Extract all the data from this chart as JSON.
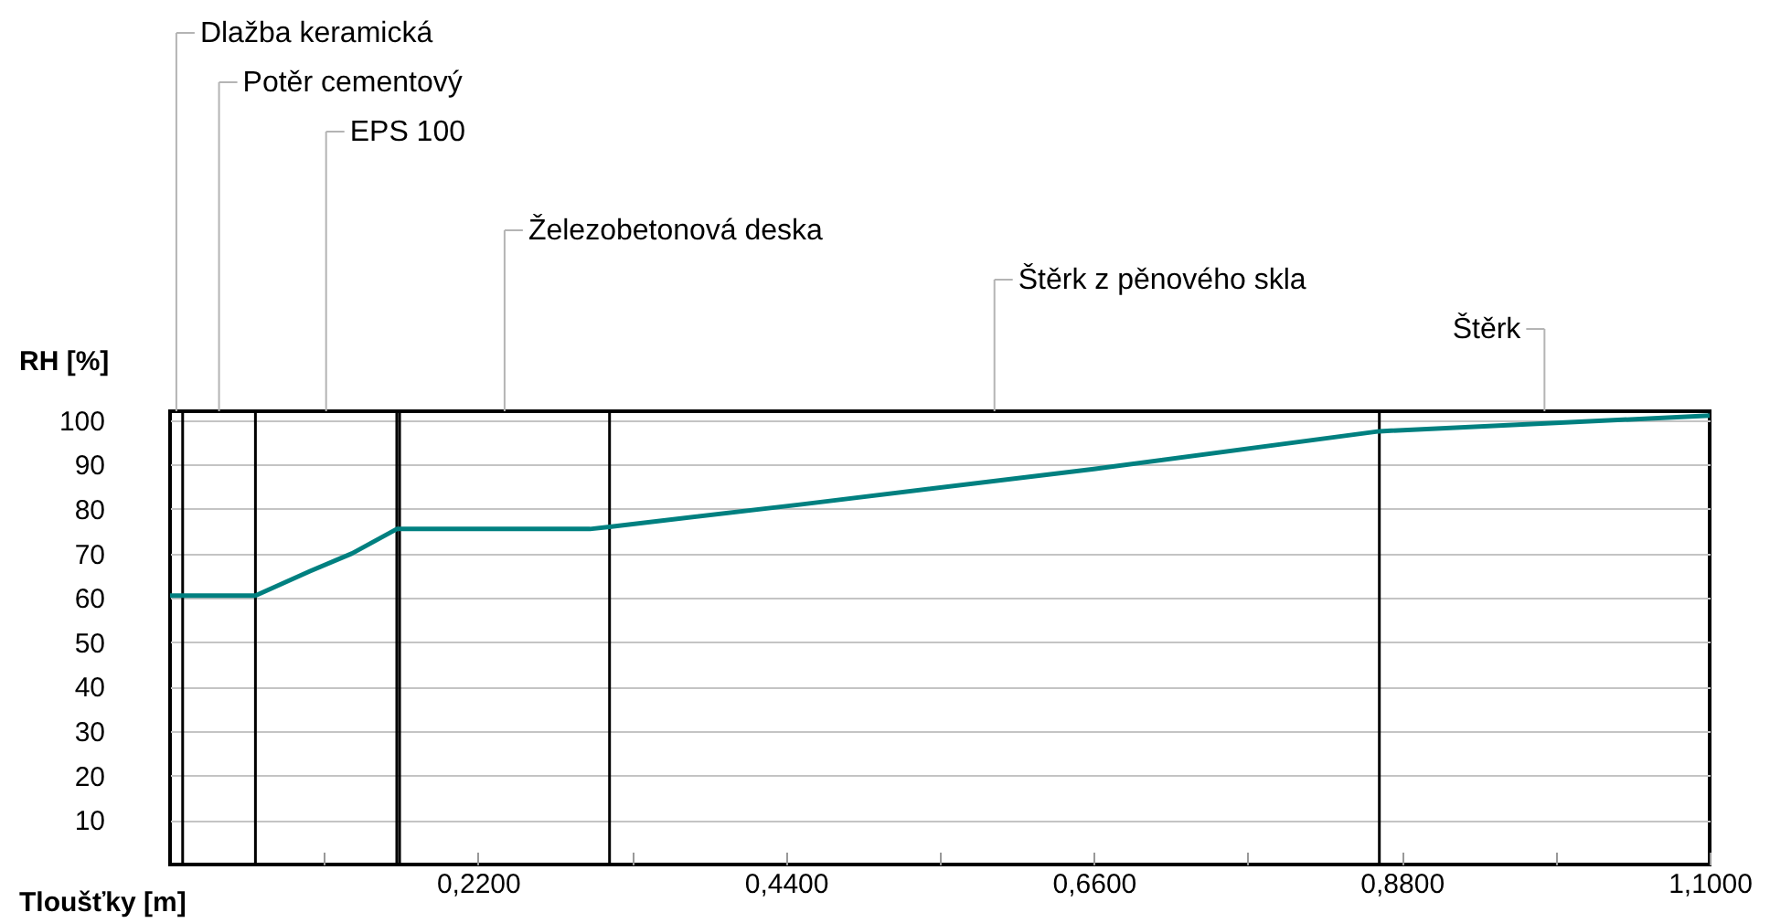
{
  "chart_data": {
    "type": "line",
    "xlabel": "Tloušťky [m]",
    "ylabel": "RH [%]",
    "x": [
      0,
      0.061,
      0.1,
      0.13,
      0.162,
      0.3,
      0.314,
      0.45,
      0.66,
      0.864,
      1.1
    ],
    "series": [
      {
        "color": "#008080",
        "values": [
          60.5,
          60.5,
          66,
          70,
          75.5,
          75.5,
          76,
          81,
          89,
          97.5,
          101
        ]
      }
    ],
    "xlim": [
      0,
      1.1
    ],
    "ylim": [
      0,
      102
    ],
    "xticks": [
      {
        "value": 0.11,
        "label": null
      },
      {
        "value": 0.22,
        "label": "0,2200"
      },
      {
        "value": 0.33,
        "label": null
      },
      {
        "value": 0.44,
        "label": "0,4400"
      },
      {
        "value": 0.55,
        "label": null
      },
      {
        "value": 0.66,
        "label": "0,6600"
      },
      {
        "value": 0.77,
        "label": null
      },
      {
        "value": 0.88,
        "label": "0,8800"
      },
      {
        "value": 0.99,
        "label": null
      },
      {
        "value": 1.1,
        "label": "1,1000"
      }
    ],
    "yticks": [
      10,
      20,
      30,
      40,
      50,
      60,
      70,
      80,
      90,
      100
    ],
    "grid": "y",
    "ref_lines": [
      {
        "axis": "x",
        "value": 0.009
      },
      {
        "axis": "x",
        "value": 0.061
      },
      {
        "axis": "x",
        "value": 0.162
      },
      {
        "axis": "x",
        "value": 0.164
      },
      {
        "axis": "x",
        "value": 0.314
      },
      {
        "axis": "x",
        "value": 0.864
      }
    ],
    "annotations": [
      "Dlažba keramická",
      "Potěr cementový",
      "EPS 100",
      "Železobetonová deska",
      "Štěrk z pěnového skla",
      "Štěrk"
    ]
  }
}
